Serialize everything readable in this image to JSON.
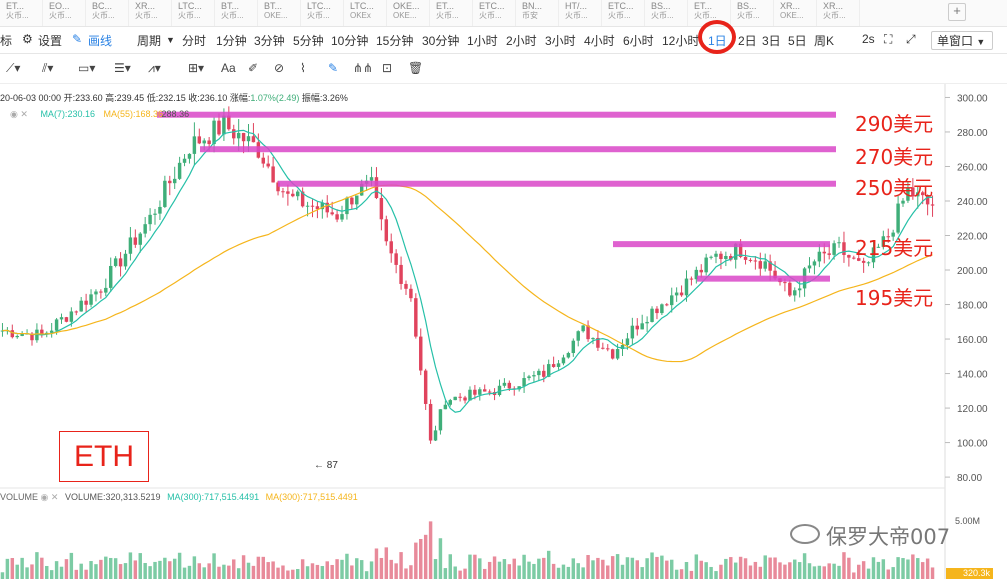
{
  "tabs": [
    {
      "a": "ET...",
      "b": "火币..."
    },
    {
      "a": "EO...",
      "b": "火币..."
    },
    {
      "a": "BC...",
      "b": "火币..."
    },
    {
      "a": "XR...",
      "b": "火币..."
    },
    {
      "a": "LTC...",
      "b": "火币..."
    },
    {
      "a": "BT...",
      "b": "火币..."
    },
    {
      "a": "BT...",
      "b": "OKE..."
    },
    {
      "a": "LTC...",
      "b": "火币..."
    },
    {
      "a": "LTC...",
      "b": "OKEx"
    },
    {
      "a": "OKE...",
      "b": "OKE..."
    },
    {
      "a": "ET...",
      "b": "火币..."
    },
    {
      "a": "ETC...",
      "b": "火币..."
    },
    {
      "a": "BN...",
      "b": "币安"
    },
    {
      "a": "HT/...",
      "b": "火币..."
    },
    {
      "a": "ETC...",
      "b": "火币..."
    },
    {
      "a": "BS...",
      "b": "火币..."
    },
    {
      "a": "ET...",
      "b": "火币..."
    },
    {
      "a": "BS...",
      "b": "火币..."
    },
    {
      "a": "XR...",
      "b": "OKE..."
    },
    {
      "a": "XR...",
      "b": "火币..."
    }
  ],
  "tab_plus": "+",
  "toolbar": {
    "indicator": "标",
    "settings": "设置",
    "draw": "画线",
    "period": "周期",
    "intervals": [
      "分时",
      "1分钟",
      "3分钟",
      "5分钟",
      "10分钟",
      "15分钟",
      "30分钟",
      "1小时",
      "2小时",
      "3小时",
      "4小时",
      "6小时",
      "12小时",
      "1日",
      "2日",
      "3日",
      "5日",
      "周K"
    ],
    "active_interval": "1日",
    "time_label": "2s",
    "window": "单窗口"
  },
  "drawbar": {
    "text_tool": "Aa"
  },
  "ohlc_line": {
    "date": "20-06-03 00:00",
    "open_label": "开:",
    "open": "233.60",
    "high_label": "高:",
    "high": "239.45",
    "low_label": "低:",
    "low": "232.15",
    "close_label": "收:",
    "close": "236.10",
    "change_label": "涨幅:",
    "change": "1.07%(2.49)",
    "amp_label": "振幅:",
    "amp": "3.26%"
  },
  "ma_line": {
    "ma7": "MA(7):230.16",
    "ma55": "MA(55):168.36",
    "last_high": "288.36"
  },
  "vol_line": {
    "label": "VOLUME",
    "volume": "VOLUME:320,313.5219",
    "ma300a": "MA(300):717,515.4491",
    "ma300b": "MA(300):717,515.4491"
  },
  "vol_axis": {
    "max": "5.00M",
    "current": "320.3k"
  },
  "annotations": {
    "levels": [
      "290美元",
      "270美元",
      "250美元",
      "215美元",
      "195美元"
    ],
    "coin": "ETH",
    "low_marker": "87"
  },
  "watermark": "保罗大帝007",
  "colors": {
    "up": "#3fae79",
    "down": "#e0435d",
    "ma7": "#26c0a8",
    "ma55": "#f5b51c",
    "annotation": "#e8231a",
    "band": "#d946c8",
    "active": "#2a82e4"
  },
  "chart_data": {
    "type": "candlestick",
    "y_axis": {
      "ticks": [
        300,
        280,
        260,
        240,
        220,
        200,
        180,
        160,
        140,
        120,
        100,
        80
      ],
      "ylim": [
        76,
        302
      ]
    },
    "series": [
      {
        "name": "MA(7)",
        "color": "#26c0a8"
      },
      {
        "name": "MA(55)",
        "color": "#f5b51c"
      }
    ],
    "levels": [
      290,
      270,
      250,
      215,
      195
    ],
    "low_marker_value": 87,
    "keypoints": [
      [
        0,
        165
      ],
      [
        8,
        162
      ],
      [
        20,
        190
      ],
      [
        30,
        230
      ],
      [
        38,
        272
      ],
      [
        45,
        284
      ],
      [
        52,
        270
      ],
      [
        58,
        242
      ],
      [
        68,
        232
      ],
      [
        72,
        246
      ],
      [
        75,
        248
      ],
      [
        78,
        214
      ],
      [
        83,
        185
      ],
      [
        87,
        100
      ],
      [
        90,
        125
      ],
      [
        100,
        130
      ],
      [
        110,
        140
      ],
      [
        118,
        165
      ],
      [
        124,
        152
      ],
      [
        130,
        172
      ],
      [
        138,
        190
      ],
      [
        145,
        208
      ],
      [
        150,
        212
      ],
      [
        155,
        204
      ],
      [
        160,
        185
      ],
      [
        165,
        205
      ],
      [
        170,
        212
      ],
      [
        175,
        200
      ],
      [
        180,
        220
      ],
      [
        184,
        246
      ],
      [
        188,
        238
      ]
    ]
  }
}
